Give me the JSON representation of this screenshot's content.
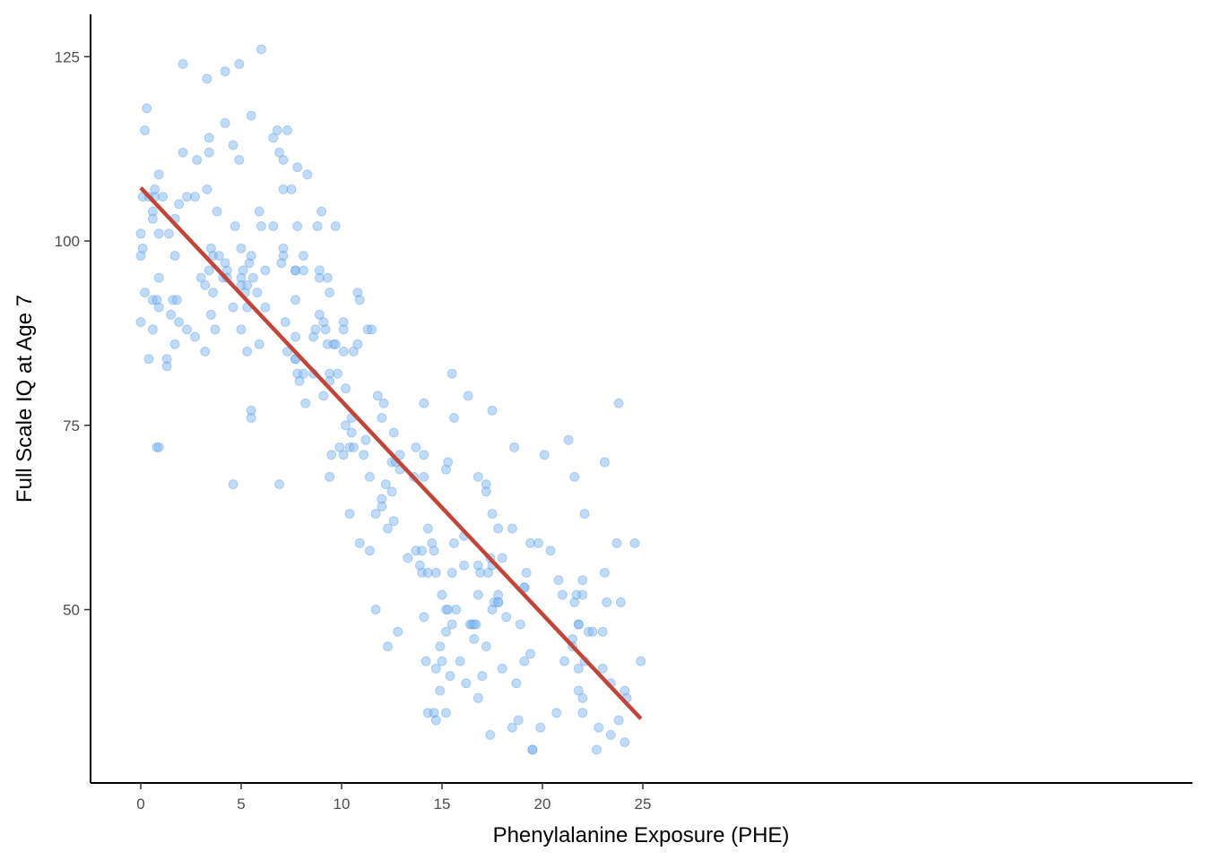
{
  "chart_data": {
    "type": "scatter",
    "title": "",
    "xlabel": "Phenylalanine Exposure (PHE)",
    "ylabel": "Full Scale IQ at Age 7",
    "xlim": [
      -1.2,
      26
    ],
    "ylim": [
      28,
      128
    ],
    "x_ticks": [
      0,
      5,
      10,
      15,
      20,
      25
    ],
    "y_ticks": [
      50,
      75,
      100,
      125
    ],
    "x_tick_labels": [
      "0",
      "5",
      "10",
      "15",
      "20",
      "25"
    ],
    "y_tick_labels": [
      "50",
      "75",
      "100",
      "125"
    ],
    "grid": false,
    "point_color": "#7fb7f0",
    "point_stroke": "#4a90e2",
    "line_color": "#c0463a",
    "regression_line": {
      "x": [
        0,
        24.9
      ],
      "y": [
        107.2,
        35.2
      ]
    },
    "points": [
      [
        0.0,
        98
      ],
      [
        0.0,
        101
      ],
      [
        0.0,
        89
      ],
      [
        0.1,
        99
      ],
      [
        0.1,
        106
      ],
      [
        0.2,
        93
      ],
      [
        0.2,
        115
      ],
      [
        0.3,
        118
      ],
      [
        0.4,
        106
      ],
      [
        0.4,
        84
      ],
      [
        0.6,
        104
      ],
      [
        0.6,
        103
      ],
      [
        0.6,
        92
      ],
      [
        0.6,
        88
      ],
      [
        0.7,
        107
      ],
      [
        0.7,
        106
      ],
      [
        0.8,
        92
      ],
      [
        0.8,
        72
      ],
      [
        0.9,
        109
      ],
      [
        0.9,
        101
      ],
      [
        0.9,
        95
      ],
      [
        0.9,
        91
      ],
      [
        0.9,
        72
      ],
      [
        1.1,
        106
      ],
      [
        1.3,
        84
      ],
      [
        1.3,
        83
      ],
      [
        1.4,
        101
      ],
      [
        1.5,
        90
      ],
      [
        1.6,
        92
      ],
      [
        1.7,
        103
      ],
      [
        1.7,
        98
      ],
      [
        1.7,
        86
      ],
      [
        1.8,
        92
      ],
      [
        1.9,
        105
      ],
      [
        1.9,
        89
      ],
      [
        2.1,
        124
      ],
      [
        2.1,
        112
      ],
      [
        2.3,
        106
      ],
      [
        2.3,
        88
      ],
      [
        2.7,
        106
      ],
      [
        2.7,
        87
      ],
      [
        2.8,
        111
      ],
      [
        3.0,
        95
      ],
      [
        3.2,
        94
      ],
      [
        3.2,
        85
      ],
      [
        3.3,
        122
      ],
      [
        3.3,
        107
      ],
      [
        3.4,
        114
      ],
      [
        3.4,
        112
      ],
      [
        3.4,
        96
      ],
      [
        3.5,
        99
      ],
      [
        3.5,
        90
      ],
      [
        3.6,
        98
      ],
      [
        3.6,
        93
      ],
      [
        3.7,
        88
      ],
      [
        3.8,
        104
      ],
      [
        3.9,
        98
      ],
      [
        4.1,
        95
      ],
      [
        4.2,
        123
      ],
      [
        4.2,
        116
      ],
      [
        4.2,
        97
      ],
      [
        4.3,
        96
      ],
      [
        4.3,
        95
      ],
      [
        4.6,
        113
      ],
      [
        4.6,
        91
      ],
      [
        4.6,
        67
      ],
      [
        4.7,
        102
      ],
      [
        4.9,
        124
      ],
      [
        4.9,
        111
      ],
      [
        5.0,
        99
      ],
      [
        5.0,
        95
      ],
      [
        5.0,
        94
      ],
      [
        5.0,
        88
      ],
      [
        5.1,
        96
      ],
      [
        5.2,
        93
      ],
      [
        5.3,
        94
      ],
      [
        5.3,
        91
      ],
      [
        5.3,
        85
      ],
      [
        5.4,
        97
      ],
      [
        5.5,
        117
      ],
      [
        5.5,
        98
      ],
      [
        5.5,
        77
      ],
      [
        5.5,
        76
      ],
      [
        5.6,
        95
      ],
      [
        5.8,
        93
      ],
      [
        5.9,
        104
      ],
      [
        5.9,
        86
      ],
      [
        6.0,
        126
      ],
      [
        6.0,
        102
      ],
      [
        6.2,
        96
      ],
      [
        6.2,
        91
      ],
      [
        6.6,
        114
      ],
      [
        6.6,
        102
      ],
      [
        6.8,
        115
      ],
      [
        6.9,
        112
      ],
      [
        6.9,
        67
      ],
      [
        7.0,
        97
      ],
      [
        7.1,
        111
      ],
      [
        7.1,
        107
      ],
      [
        7.1,
        99
      ],
      [
        7.1,
        98
      ],
      [
        7.2,
        89
      ],
      [
        7.3,
        115
      ],
      [
        7.3,
        85
      ],
      [
        7.5,
        107
      ],
      [
        7.7,
        96
      ],
      [
        7.7,
        96
      ],
      [
        7.7,
        92
      ],
      [
        7.7,
        87
      ],
      [
        7.7,
        84
      ],
      [
        7.7,
        84
      ],
      [
        7.8,
        110
      ],
      [
        7.8,
        102
      ],
      [
        7.8,
        82
      ],
      [
        7.9,
        81
      ],
      [
        8.1,
        98
      ],
      [
        8.1,
        96
      ],
      [
        8.1,
        82
      ],
      [
        8.2,
        78
      ],
      [
        8.3,
        109
      ],
      [
        8.6,
        87
      ],
      [
        8.6,
        82
      ],
      [
        8.7,
        88
      ],
      [
        8.8,
        102
      ],
      [
        8.9,
        96
      ],
      [
        8.9,
        95
      ],
      [
        8.9,
        90
      ],
      [
        9.0,
        104
      ],
      [
        9.1,
        89
      ],
      [
        9.1,
        79
      ],
      [
        9.2,
        88
      ],
      [
        9.3,
        95
      ],
      [
        9.3,
        86
      ],
      [
        9.4,
        93
      ],
      [
        9.4,
        82
      ],
      [
        9.4,
        81
      ],
      [
        9.4,
        68
      ],
      [
        9.5,
        71
      ],
      [
        9.6,
        86
      ],
      [
        9.7,
        102
      ],
      [
        9.7,
        86
      ],
      [
        9.8,
        82
      ],
      [
        9.9,
        72
      ],
      [
        10.1,
        89
      ],
      [
        10.1,
        88
      ],
      [
        10.1,
        85
      ],
      [
        10.1,
        71
      ],
      [
        10.2,
        80
      ],
      [
        10.2,
        75
      ],
      [
        10.4,
        72
      ],
      [
        10.4,
        63
      ],
      [
        10.5,
        76
      ],
      [
        10.5,
        74
      ],
      [
        10.6,
        85
      ],
      [
        10.6,
        72
      ],
      [
        10.8,
        93
      ],
      [
        10.8,
        86
      ],
      [
        10.9,
        92
      ],
      [
        10.9,
        59
      ],
      [
        11.1,
        71
      ],
      [
        11.2,
        73
      ],
      [
        11.3,
        88
      ],
      [
        11.4,
        68
      ],
      [
        11.4,
        58
      ],
      [
        11.5,
        88
      ],
      [
        11.7,
        63
      ],
      [
        11.7,
        50
      ],
      [
        11.8,
        79
      ],
      [
        12.0,
        76
      ],
      [
        12.0,
        65
      ],
      [
        12.0,
        64
      ],
      [
        12.1,
        78
      ],
      [
        12.2,
        67
      ],
      [
        12.3,
        61
      ],
      [
        12.3,
        45
      ],
      [
        12.5,
        70
      ],
      [
        12.5,
        66
      ],
      [
        12.6,
        74
      ],
      [
        12.6,
        62
      ],
      [
        12.7,
        70
      ],
      [
        12.8,
        47
      ],
      [
        12.9,
        71
      ],
      [
        12.9,
        69
      ],
      [
        13.3,
        57
      ],
      [
        13.6,
        68
      ],
      [
        13.7,
        72
      ],
      [
        13.7,
        58
      ],
      [
        13.9,
        56
      ],
      [
        14.0,
        58
      ],
      [
        14.0,
        55
      ],
      [
        14.1,
        78
      ],
      [
        14.1,
        71
      ],
      [
        14.1,
        68
      ],
      [
        14.1,
        49
      ],
      [
        14.2,
        43
      ],
      [
        14.3,
        61
      ],
      [
        14.3,
        55
      ],
      [
        14.3,
        36
      ],
      [
        14.5,
        59
      ],
      [
        14.6,
        58
      ],
      [
        14.6,
        36
      ],
      [
        14.7,
        55
      ],
      [
        14.7,
        42
      ],
      [
        14.7,
        35
      ],
      [
        14.9,
        45
      ],
      [
        14.9,
        39
      ],
      [
        15.0,
        52
      ],
      [
        15.0,
        43
      ],
      [
        15.2,
        69
      ],
      [
        15.2,
        50
      ],
      [
        15.2,
        47
      ],
      [
        15.2,
        36
      ],
      [
        15.3,
        70
      ],
      [
        15.3,
        50
      ],
      [
        15.4,
        41
      ],
      [
        15.5,
        82
      ],
      [
        15.5,
        55
      ],
      [
        15.5,
        48
      ],
      [
        15.6,
        76
      ],
      [
        15.6,
        59
      ],
      [
        15.7,
        50
      ],
      [
        15.9,
        43
      ],
      [
        16.1,
        60
      ],
      [
        16.1,
        56
      ],
      [
        16.2,
        40
      ],
      [
        16.3,
        79
      ],
      [
        16.4,
        48
      ],
      [
        16.5,
        48
      ],
      [
        16.6,
        48
      ],
      [
        16.6,
        46
      ],
      [
        16.7,
        48
      ],
      [
        16.8,
        68
      ],
      [
        16.8,
        56
      ],
      [
        16.8,
        52
      ],
      [
        16.8,
        38
      ],
      [
        16.9,
        55
      ],
      [
        17.0,
        41
      ],
      [
        17.2,
        67
      ],
      [
        17.2,
        66
      ],
      [
        17.2,
        45
      ],
      [
        17.3,
        55
      ],
      [
        17.4,
        57
      ],
      [
        17.4,
        33
      ],
      [
        17.5,
        77
      ],
      [
        17.5,
        63
      ],
      [
        17.5,
        56
      ],
      [
        17.5,
        50
      ],
      [
        17.6,
        51
      ],
      [
        17.8,
        61
      ],
      [
        17.8,
        52
      ],
      [
        17.8,
        51
      ],
      [
        17.8,
        51
      ],
      [
        18.0,
        57
      ],
      [
        18.0,
        42
      ],
      [
        18.2,
        49
      ],
      [
        18.5,
        61
      ],
      [
        18.5,
        34
      ],
      [
        18.6,
        72
      ],
      [
        18.7,
        40
      ],
      [
        18.8,
        35
      ],
      [
        18.9,
        48
      ],
      [
        19.1,
        53
      ],
      [
        19.1,
        53
      ],
      [
        19.1,
        43
      ],
      [
        19.2,
        55
      ],
      [
        19.4,
        59
      ],
      [
        19.4,
        44
      ],
      [
        19.5,
        31
      ],
      [
        19.5,
        31
      ],
      [
        19.8,
        59
      ],
      [
        19.9,
        34
      ],
      [
        20.1,
        71
      ],
      [
        20.4,
        58
      ],
      [
        20.7,
        36
      ],
      [
        20.8,
        54
      ],
      [
        21.0,
        52
      ],
      [
        21.1,
        43
      ],
      [
        21.3,
        73
      ],
      [
        21.5,
        46
      ],
      [
        21.5,
        45
      ],
      [
        21.6,
        68
      ],
      [
        21.6,
        51
      ],
      [
        21.7,
        52
      ],
      [
        21.8,
        48
      ],
      [
        21.8,
        48
      ],
      [
        21.8,
        42
      ],
      [
        21.8,
        39
      ],
      [
        22.0,
        54
      ],
      [
        22.0,
        52
      ],
      [
        22.0,
        38
      ],
      [
        22.0,
        36
      ],
      [
        22.1,
        63
      ],
      [
        22.1,
        43
      ],
      [
        22.3,
        47
      ],
      [
        22.5,
        47
      ],
      [
        22.7,
        31
      ],
      [
        22.8,
        34
      ],
      [
        23.0,
        47
      ],
      [
        23.0,
        42
      ],
      [
        23.1,
        70
      ],
      [
        23.1,
        55
      ],
      [
        23.2,
        51
      ],
      [
        23.4,
        40
      ],
      [
        23.4,
        33
      ],
      [
        23.7,
        59
      ],
      [
        23.8,
        78
      ],
      [
        23.8,
        35
      ],
      [
        23.9,
        51
      ],
      [
        24.1,
        39
      ],
      [
        24.1,
        32
      ],
      [
        24.2,
        38
      ],
      [
        24.6,
        59
      ],
      [
        24.9,
        43
      ]
    ]
  }
}
